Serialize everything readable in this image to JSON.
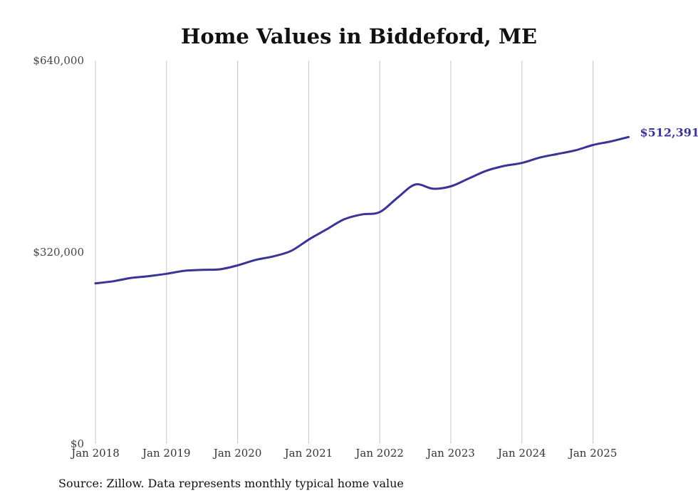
{
  "chart_data": {
    "type": "line",
    "title": "Home Values in Biddeford, ME",
    "xlabel": "",
    "ylabel": "",
    "ylim": [
      0,
      640000
    ],
    "yticks": [
      {
        "value": 0,
        "label": "$0"
      },
      {
        "value": 320000,
        "label": "$320,000"
      },
      {
        "value": 640000,
        "label": "$640,000"
      }
    ],
    "xticks": [
      {
        "date": "2018-01",
        "label": "Jan 2018"
      },
      {
        "date": "2019-01",
        "label": "Jan 2019"
      },
      {
        "date": "2020-01",
        "label": "Jan 2020"
      },
      {
        "date": "2021-01",
        "label": "Jan 2021"
      },
      {
        "date": "2022-01",
        "label": "Jan 2022"
      },
      {
        "date": "2023-01",
        "label": "Jan 2023"
      },
      {
        "date": "2024-01",
        "label": "Jan 2024"
      },
      {
        "date": "2025-01",
        "label": "Jan 2025"
      }
    ],
    "grid": {
      "vertical": true,
      "horizontal": false
    },
    "series": [
      {
        "color": "#3a3497",
        "points": [
          [
            "2018-01",
            268000
          ],
          [
            "2018-04",
            271500
          ],
          [
            "2018-07",
            277000
          ],
          [
            "2018-10",
            280000
          ],
          [
            "2019-01",
            284000
          ],
          [
            "2019-04",
            289000
          ],
          [
            "2019-07",
            290500
          ],
          [
            "2019-10",
            291500
          ],
          [
            "2020-01",
            298000
          ],
          [
            "2020-04",
            307000
          ],
          [
            "2020-07",
            313000
          ],
          [
            "2020-10",
            322000
          ],
          [
            "2021-01",
            341000
          ],
          [
            "2021-04",
            358000
          ],
          [
            "2021-07",
            375000
          ],
          [
            "2021-10",
            383000
          ],
          [
            "2022-01",
            387000
          ],
          [
            "2022-04",
            411000
          ],
          [
            "2022-07",
            433000
          ],
          [
            "2022-10",
            426000
          ],
          [
            "2023-01",
            430000
          ],
          [
            "2023-04",
            443000
          ],
          [
            "2023-07",
            456000
          ],
          [
            "2023-10",
            464000
          ],
          [
            "2024-01",
            469000
          ],
          [
            "2024-04",
            478000
          ],
          [
            "2024-07",
            484000
          ],
          [
            "2024-10",
            490000
          ],
          [
            "2025-01",
            499000
          ],
          [
            "2025-04",
            505000
          ],
          [
            "2025-07",
            512391
          ]
        ]
      }
    ],
    "end_label": "$512,391"
  },
  "source_note": "Source: Zillow. Data represents monthly typical home value"
}
